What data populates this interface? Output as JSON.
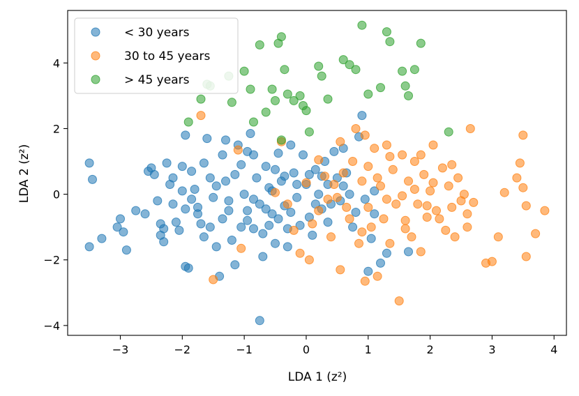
{
  "chart_data": {
    "type": "scatter",
    "xlabel": "LDA 1 (z²)",
    "ylabel": "LDA 2 (z²)",
    "xlim": [
      -3.85,
      4.2
    ],
    "ylim": [
      -4.3,
      5.6
    ],
    "xticks": [
      -3,
      -2,
      -1,
      0,
      1,
      2,
      3,
      4
    ],
    "yticks": [
      -4,
      -2,
      0,
      2,
      4
    ],
    "xtick_labels": [
      "−3",
      "−2",
      "−1",
      "0",
      "1",
      "2",
      "3",
      "4"
    ],
    "ytick_labels": [
      "−4",
      "−2",
      "0",
      "2",
      "4"
    ],
    "grid": false,
    "legend_position": "upper-left",
    "series": [
      {
        "name": "< 30 years",
        "color": "#1f77b4",
        "points": [
          [
            -3.5,
            0.95
          ],
          [
            -3.45,
            0.45
          ],
          [
            -3.5,
            -1.6
          ],
          [
            -3.3,
            -1.35
          ],
          [
            -3.05,
            -1.0
          ],
          [
            -3.0,
            -0.75
          ],
          [
            -2.95,
            -1.15
          ],
          [
            -2.9,
            -1.7
          ],
          [
            -2.75,
            -0.5
          ],
          [
            -2.55,
            0.7
          ],
          [
            -2.5,
            0.8
          ],
          [
            -2.45,
            0.6
          ],
          [
            -2.4,
            -0.2
          ],
          [
            -2.35,
            -0.9
          ],
          [
            -2.35,
            -1.25
          ],
          [
            -2.3,
            -1.05
          ],
          [
            -2.3,
            -1.45
          ],
          [
            -2.25,
            0.95
          ],
          [
            -2.2,
            0.3
          ],
          [
            -2.15,
            -0.3
          ],
          [
            -2.1,
            -0.85
          ],
          [
            -2.05,
            -1.1
          ],
          [
            -2.0,
            0.85
          ],
          [
            -1.95,
            1.8
          ],
          [
            -1.95,
            -2.2
          ],
          [
            -1.9,
            -2.25
          ],
          [
            -1.85,
            0.7
          ],
          [
            -1.8,
            0.15
          ],
          [
            -1.75,
            -0.4
          ],
          [
            -1.7,
            -0.9
          ],
          [
            -1.65,
            -1.3
          ],
          [
            -1.6,
            1.7
          ],
          [
            -1.55,
            0.5
          ],
          [
            -1.5,
            -0.1
          ],
          [
            -1.45,
            -1.6
          ],
          [
            -1.4,
            -2.5
          ],
          [
            -1.35,
            1.2
          ],
          [
            -1.3,
            0.4
          ],
          [
            -1.25,
            -0.5
          ],
          [
            -1.2,
            -1.4
          ],
          [
            -1.15,
            -2.15
          ],
          [
            -1.1,
            1.5
          ],
          [
            -1.05,
            0.9
          ],
          [
            -1.0,
            0.0
          ],
          [
            -0.95,
            -0.8
          ],
          [
            -0.9,
            1.85
          ],
          [
            -0.85,
            1.2
          ],
          [
            -0.8,
            0.5
          ],
          [
            -0.75,
            -0.3
          ],
          [
            -0.7,
            -1.2
          ],
          [
            -0.7,
            -1.9
          ],
          [
            -0.65,
            0.85
          ],
          [
            -0.6,
            0.2
          ],
          [
            -0.55,
            -0.6
          ],
          [
            -0.5,
            -1.5
          ],
          [
            -0.45,
            1.25
          ],
          [
            -0.4,
            0.4
          ],
          [
            -0.35,
            -0.35
          ],
          [
            -0.3,
            -1.05
          ],
          [
            -0.25,
            1.5
          ],
          [
            -0.2,
            0.65
          ],
          [
            -0.15,
            -0.1
          ],
          [
            -0.1,
            -0.95
          ],
          [
            -0.05,
            1.2
          ],
          [
            0.0,
            0.3
          ],
          [
            0.05,
            -0.7
          ],
          [
            0.1,
            -1.25
          ],
          [
            0.15,
            0.75
          ],
          [
            0.2,
            0.0
          ],
          [
            0.25,
            -0.45
          ],
          [
            0.3,
            1.0
          ],
          [
            0.35,
            0.3
          ],
          [
            0.4,
            -0.3
          ],
          [
            0.45,
            1.3
          ],
          [
            0.5,
            0.5
          ],
          [
            0.55,
            -0.2
          ],
          [
            0.6,
            1.4
          ],
          [
            0.65,
            0.65
          ],
          [
            0.7,
            0.0
          ],
          [
            0.8,
            -0.55
          ],
          [
            0.85,
            1.75
          ],
          [
            0.9,
            2.4
          ],
          [
            0.95,
            -0.15
          ],
          [
            1.0,
            -2.35
          ],
          [
            1.05,
            -1.35
          ],
          [
            1.1,
            0.1
          ],
          [
            1.2,
            -2.1
          ],
          [
            1.3,
            -1.8
          ],
          [
            1.65,
            -1.75
          ],
          [
            -0.75,
            -3.85
          ],
          [
            -1.55,
            -1.0
          ],
          [
            -1.25,
            -0.2
          ],
          [
            -0.95,
            -0.5
          ],
          [
            -0.85,
            -1.05
          ],
          [
            -0.65,
            -0.45
          ],
          [
            -0.55,
            0.1
          ],
          [
            -0.45,
            -0.75
          ],
          [
            -0.35,
            0.55
          ],
          [
            -0.25,
            -0.55
          ],
          [
            -0.15,
            0.3
          ],
          [
            0.05,
            0.6
          ],
          [
            0.15,
            -0.3
          ],
          [
            0.25,
            0.55
          ],
          [
            -1.75,
            -0.6
          ],
          [
            -1.45,
            0.25
          ],
          [
            -1.15,
            0.6
          ],
          [
            -2.15,
            0.5
          ],
          [
            -1.85,
            -0.15
          ],
          [
            -2.6,
            -0.6
          ],
          [
            -1.65,
            0.95
          ],
          [
            -0.95,
            1.3
          ],
          [
            -0.85,
            -0.15
          ],
          [
            -0.6,
            -0.95
          ],
          [
            -1.05,
            -1.0
          ],
          [
            -1.35,
            -0.75
          ],
          [
            -1.95,
            -0.45
          ],
          [
            -2.0,
            0.1
          ],
          [
            -1.3,
            1.65
          ],
          [
            -0.5,
            0.75
          ],
          [
            0.35,
            -0.85
          ],
          [
            0.6,
            0.25
          ],
          [
            0.75,
            -1.0
          ],
          [
            1.1,
            -0.6
          ],
          [
            -0.3,
            -1.6
          ]
        ]
      },
      {
        "name": "30 to 45 years",
        "color": "#ff7f0e",
        "points": [
          [
            -1.7,
            2.4
          ],
          [
            -1.5,
            -2.6
          ],
          [
            -1.05,
            -1.65
          ],
          [
            -0.5,
            0.05
          ],
          [
            -0.4,
            1.6
          ],
          [
            -0.3,
            -0.3
          ],
          [
            -0.2,
            -1.1
          ],
          [
            -0.1,
            -1.8
          ],
          [
            0.0,
            0.35
          ],
          [
            0.05,
            -2.0
          ],
          [
            0.1,
            -0.9
          ],
          [
            0.2,
            -0.5
          ],
          [
            0.3,
            0.55
          ],
          [
            0.4,
            -1.3
          ],
          [
            0.5,
            -0.1
          ],
          [
            0.55,
            -2.3
          ],
          [
            0.6,
            0.65
          ],
          [
            0.7,
            -0.75
          ],
          [
            0.75,
            1.0
          ],
          [
            0.8,
            2.0
          ],
          [
            0.85,
            -1.5
          ],
          [
            0.9,
            0.4
          ],
          [
            0.95,
            1.8
          ],
          [
            1.0,
            -0.4
          ],
          [
            1.05,
            -1.0
          ],
          [
            1.1,
            1.4
          ],
          [
            1.15,
            -2.5
          ],
          [
            1.2,
            0.25
          ],
          [
            1.25,
            -0.75
          ],
          [
            1.3,
            1.5
          ],
          [
            1.35,
            -1.5
          ],
          [
            1.4,
            0.75
          ],
          [
            1.45,
            -0.3
          ],
          [
            1.5,
            -3.25
          ],
          [
            1.55,
            1.2
          ],
          [
            1.6,
            -0.8
          ],
          [
            1.65,
            0.4
          ],
          [
            1.7,
            -1.3
          ],
          [
            1.75,
            1.0
          ],
          [
            1.8,
            -0.3
          ],
          [
            1.85,
            -1.75
          ],
          [
            1.9,
            0.6
          ],
          [
            1.95,
            -0.7
          ],
          [
            2.0,
            0.1
          ],
          [
            2.05,
            1.5
          ],
          [
            2.1,
            -0.5
          ],
          [
            2.2,
            0.8
          ],
          [
            2.25,
            -1.1
          ],
          [
            2.3,
            0.25
          ],
          [
            2.35,
            -0.4
          ],
          [
            2.4,
            -1.3
          ],
          [
            2.45,
            0.5
          ],
          [
            2.5,
            -0.2
          ],
          [
            2.55,
            0.0
          ],
          [
            2.6,
            -1.0
          ],
          [
            2.65,
            2.0
          ],
          [
            2.7,
            -0.25
          ],
          [
            2.9,
            -2.1
          ],
          [
            3.0,
            -2.05
          ],
          [
            3.1,
            -1.3
          ],
          [
            3.2,
            0.05
          ],
          [
            3.4,
            0.5
          ],
          [
            3.45,
            0.95
          ],
          [
            3.5,
            1.8
          ],
          [
            3.5,
            0.2
          ],
          [
            3.55,
            -0.35
          ],
          [
            3.55,
            -1.9
          ],
          [
            3.7,
            -1.2
          ],
          [
            3.85,
            -0.5
          ],
          [
            -1.1,
            1.35
          ],
          [
            0.95,
            -2.65
          ],
          [
            1.3,
            -0.15
          ],
          [
            0.45,
            0.3
          ],
          [
            0.65,
            -0.4
          ],
          [
            1.15,
            0.5
          ],
          [
            1.55,
            -0.05
          ],
          [
            1.75,
            0.15
          ],
          [
            1.95,
            -0.35
          ],
          [
            2.15,
            -0.75
          ],
          [
            0.35,
            -0.15
          ],
          [
            0.9,
            -1.15
          ],
          [
            1.35,
            1.15
          ],
          [
            1.6,
            -1.05
          ],
          [
            1.85,
            1.2
          ],
          [
            2.05,
            0.35
          ],
          [
            2.35,
            0.9
          ],
          [
            2.6,
            -0.6
          ],
          [
            1.0,
            0.85
          ],
          [
            0.55,
            1.6
          ],
          [
            0.2,
            1.05
          ]
        ]
      },
      {
        "name": "> 45 years",
        "color": "#2ca02c",
        "points": [
          [
            -1.9,
            2.2
          ],
          [
            -1.7,
            2.9
          ],
          [
            -1.55,
            3.3
          ],
          [
            -1.25,
            3.6
          ],
          [
            -1.2,
            2.8
          ],
          [
            -1.0,
            3.75
          ],
          [
            -0.9,
            3.2
          ],
          [
            -0.85,
            2.2
          ],
          [
            -0.75,
            4.55
          ],
          [
            -0.65,
            2.5
          ],
          [
            -0.55,
            3.2
          ],
          [
            -0.5,
            2.85
          ],
          [
            -0.45,
            4.6
          ],
          [
            -0.4,
            4.8
          ],
          [
            -0.35,
            3.8
          ],
          [
            -0.3,
            3.05
          ],
          [
            -0.2,
            2.85
          ],
          [
            -0.1,
            3.0
          ],
          [
            -0.05,
            2.7
          ],
          [
            0.0,
            2.55
          ],
          [
            0.2,
            3.9
          ],
          [
            0.25,
            3.6
          ],
          [
            0.35,
            2.9
          ],
          [
            0.6,
            4.1
          ],
          [
            0.7,
            3.95
          ],
          [
            0.8,
            3.8
          ],
          [
            0.9,
            5.15
          ],
          [
            1.0,
            3.05
          ],
          [
            1.2,
            3.25
          ],
          [
            1.3,
            4.95
          ],
          [
            1.35,
            4.65
          ],
          [
            1.55,
            3.75
          ],
          [
            1.6,
            3.3
          ],
          [
            1.65,
            3.0
          ],
          [
            1.75,
            3.8
          ],
          [
            1.85,
            4.6
          ],
          [
            2.3,
            1.9
          ],
          [
            -0.4,
            1.65
          ],
          [
            0.05,
            1.9
          ],
          [
            -1.6,
            3.35
          ]
        ]
      }
    ]
  }
}
